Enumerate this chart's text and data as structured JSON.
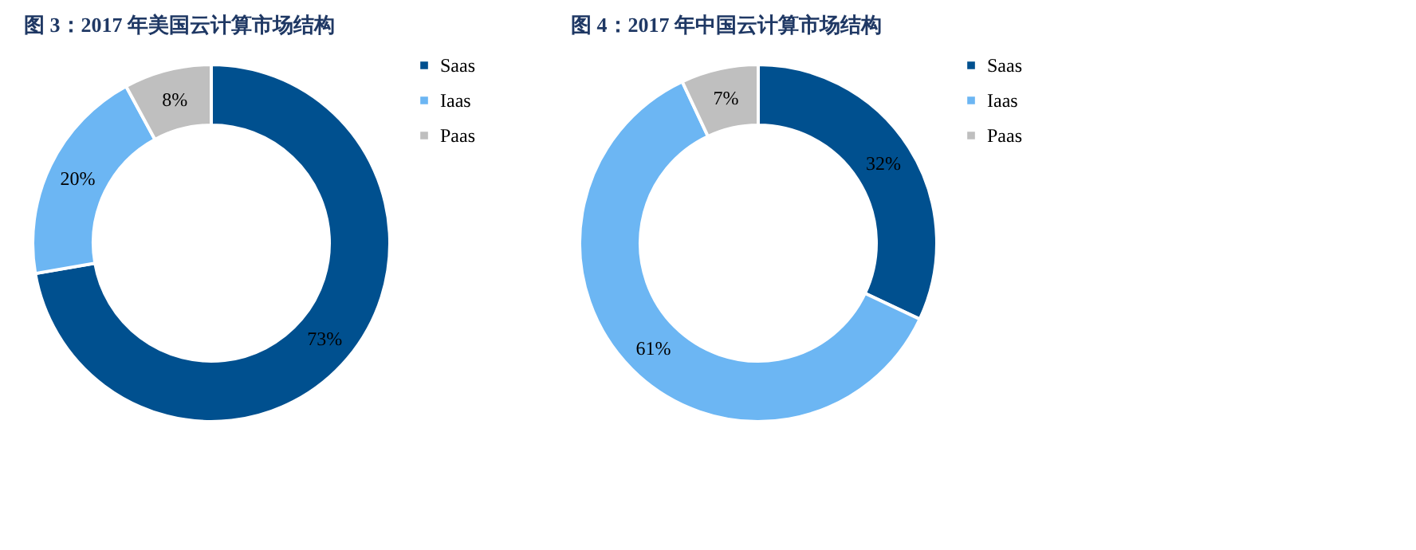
{
  "chart_data": [
    {
      "type": "donut",
      "title": "图 3：2017 年美国云计算市场结构",
      "categories": [
        "Saas",
        "Iaas",
        "Paas"
      ],
      "values": [
        73,
        20,
        8
      ],
      "value_labels": [
        "73%",
        "20%",
        "8%"
      ],
      "colors": [
        "#00508f",
        "#6cb6f3",
        "#bfbfbf"
      ],
      "legend": "right"
    },
    {
      "type": "donut",
      "title": "图 4：2017 年中国云计算市场结构",
      "categories": [
        "Saas",
        "Iaas",
        "Paas"
      ],
      "values": [
        32,
        61,
        7
      ],
      "value_labels": [
        "32%",
        "61%",
        "7%"
      ],
      "colors": [
        "#00508f",
        "#6cb6f3",
        "#bfbfbf"
      ],
      "legend": "right"
    }
  ]
}
